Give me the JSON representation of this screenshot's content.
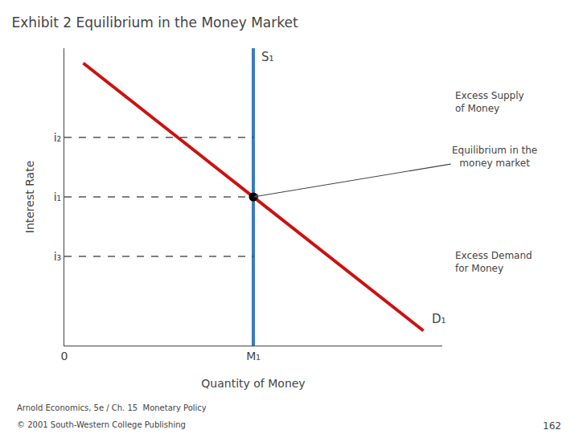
{
  "chart_data": {
    "type": "line",
    "title": "Exhibit 2 Equilibrium in the Money Market",
    "xlabel": "Quantity of Money",
    "ylabel": "Interest Rate",
    "xlim": [
      0,
      10
    ],
    "ylim": [
      0,
      10
    ],
    "xticks": [
      0,
      {
        "value": 5,
        "label": "M₁"
      }
    ],
    "yticks": [
      {
        "value": 3,
        "label": "i₃"
      },
      {
        "value": 5,
        "label": "i₁"
      },
      {
        "value": 7,
        "label": "i₂"
      }
    ],
    "grid": false,
    "series": [
      {
        "name": "S₁",
        "color": "#3a7bbf",
        "x": [
          5,
          5
        ],
        "values": [
          0,
          10
        ]
      },
      {
        "name": "D₁",
        "color": "#cc1111",
        "x": [
          0.5,
          9.5
        ],
        "values": [
          9.5,
          0.5
        ]
      },
      {
        "color": "#000000",
        "line_style": "dashed",
        "x": [
          0,
          5
        ],
        "values": [
          5,
          5
        ]
      },
      {
        "color": "#000000",
        "line_style": "dashed",
        "x": [
          0,
          5
        ],
        "values": [
          7,
          7
        ]
      },
      {
        "color": "#000000",
        "line_style": "dashed",
        "x": [
          0,
          5
        ],
        "values": [
          3,
          3
        ]
      },
      {
        "type": "scatter",
        "marker": "circle",
        "color": "#000000",
        "x": [
          5
        ],
        "values": [
          5
        ]
      }
    ],
    "annotations": [
      "Excess Supply\nof Money",
      "Equilibrium in the\nmoney market",
      "Excess Demand\nfor Money"
    ],
    "footer": [
      "Arnold Economics, 5e / Ch. 15  Monetary Policy",
      "© 2001 South-Western College Publishing",
      "162"
    ]
  }
}
